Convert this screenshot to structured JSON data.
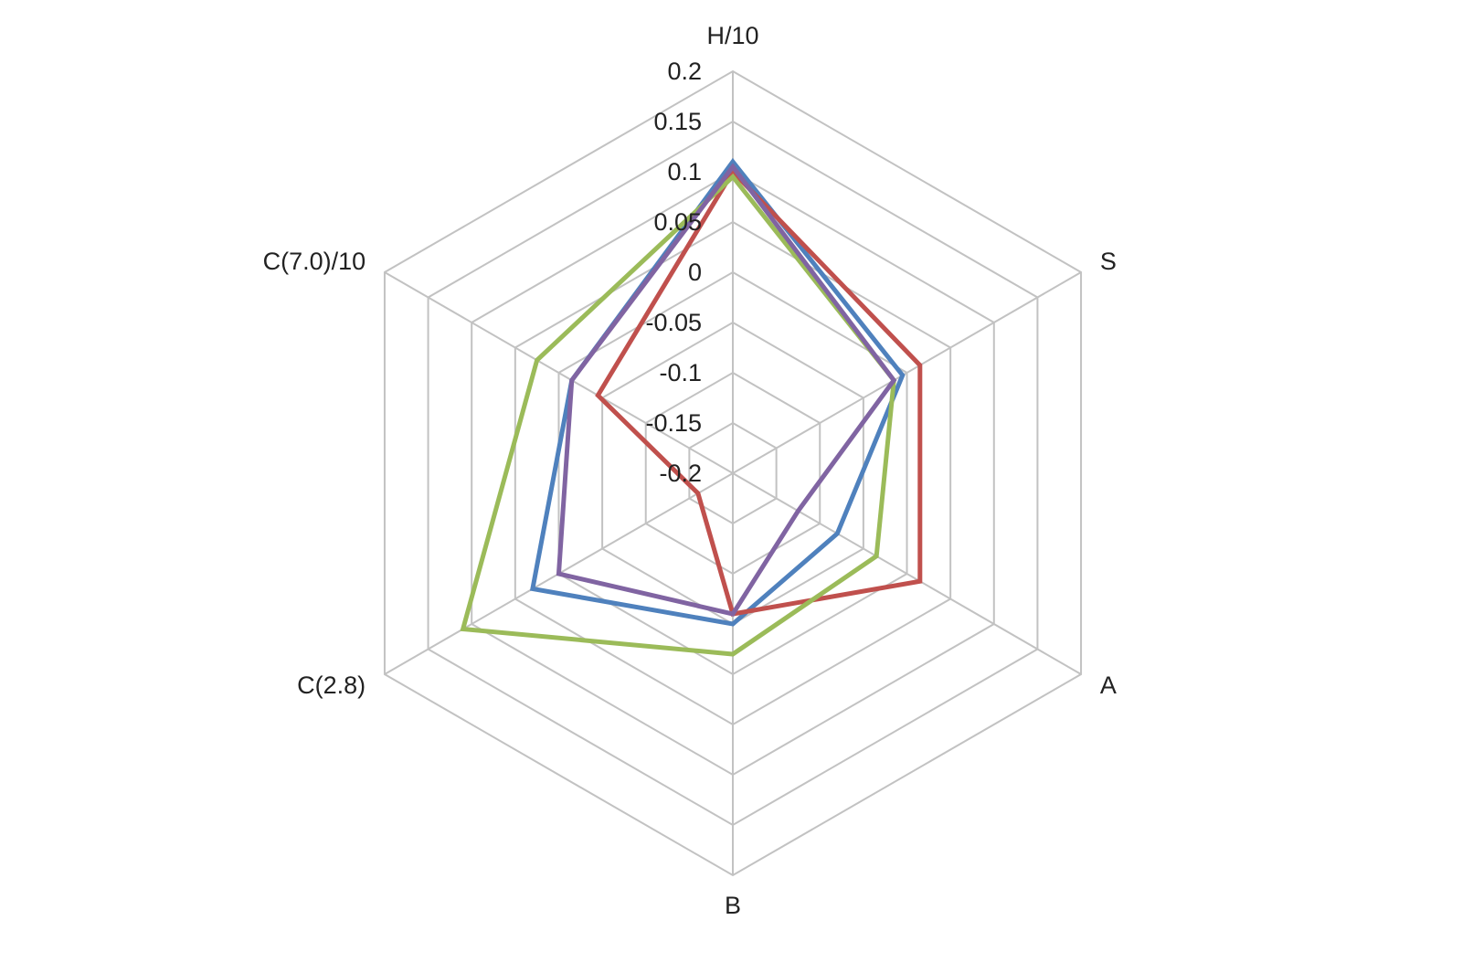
{
  "chart_data": {
    "type": "radar",
    "axes": [
      "H/10",
      "S",
      "A",
      "B",
      "C(2.8)",
      "C(7.0)/10"
    ],
    "tick_labels": [
      "-0.2",
      "-0.15",
      "-0.1",
      "-0.05",
      "0",
      "0.05",
      "0.1",
      "0.15",
      "0.2"
    ],
    "rlim": [
      -0.2,
      0.2
    ],
    "grid": true,
    "legend": "none",
    "series": [
      {
        "color": "#4f81bd",
        "values": [
          0.11,
          -0.005,
          -0.08,
          -0.05,
          0.03,
          -0.015
        ]
      },
      {
        "color": "#c0504d",
        "values": [
          0.1,
          0.015,
          0.015,
          -0.06,
          -0.16,
          -0.045
        ]
      },
      {
        "color": "#9bbb59",
        "values": [
          0.095,
          -0.015,
          -0.035,
          -0.02,
          0.11,
          0.025
        ]
      },
      {
        "color": "#8064a2",
        "values": [
          0.105,
          -0.015,
          -0.125,
          -0.06,
          0.0,
          -0.015
        ]
      }
    ]
  }
}
